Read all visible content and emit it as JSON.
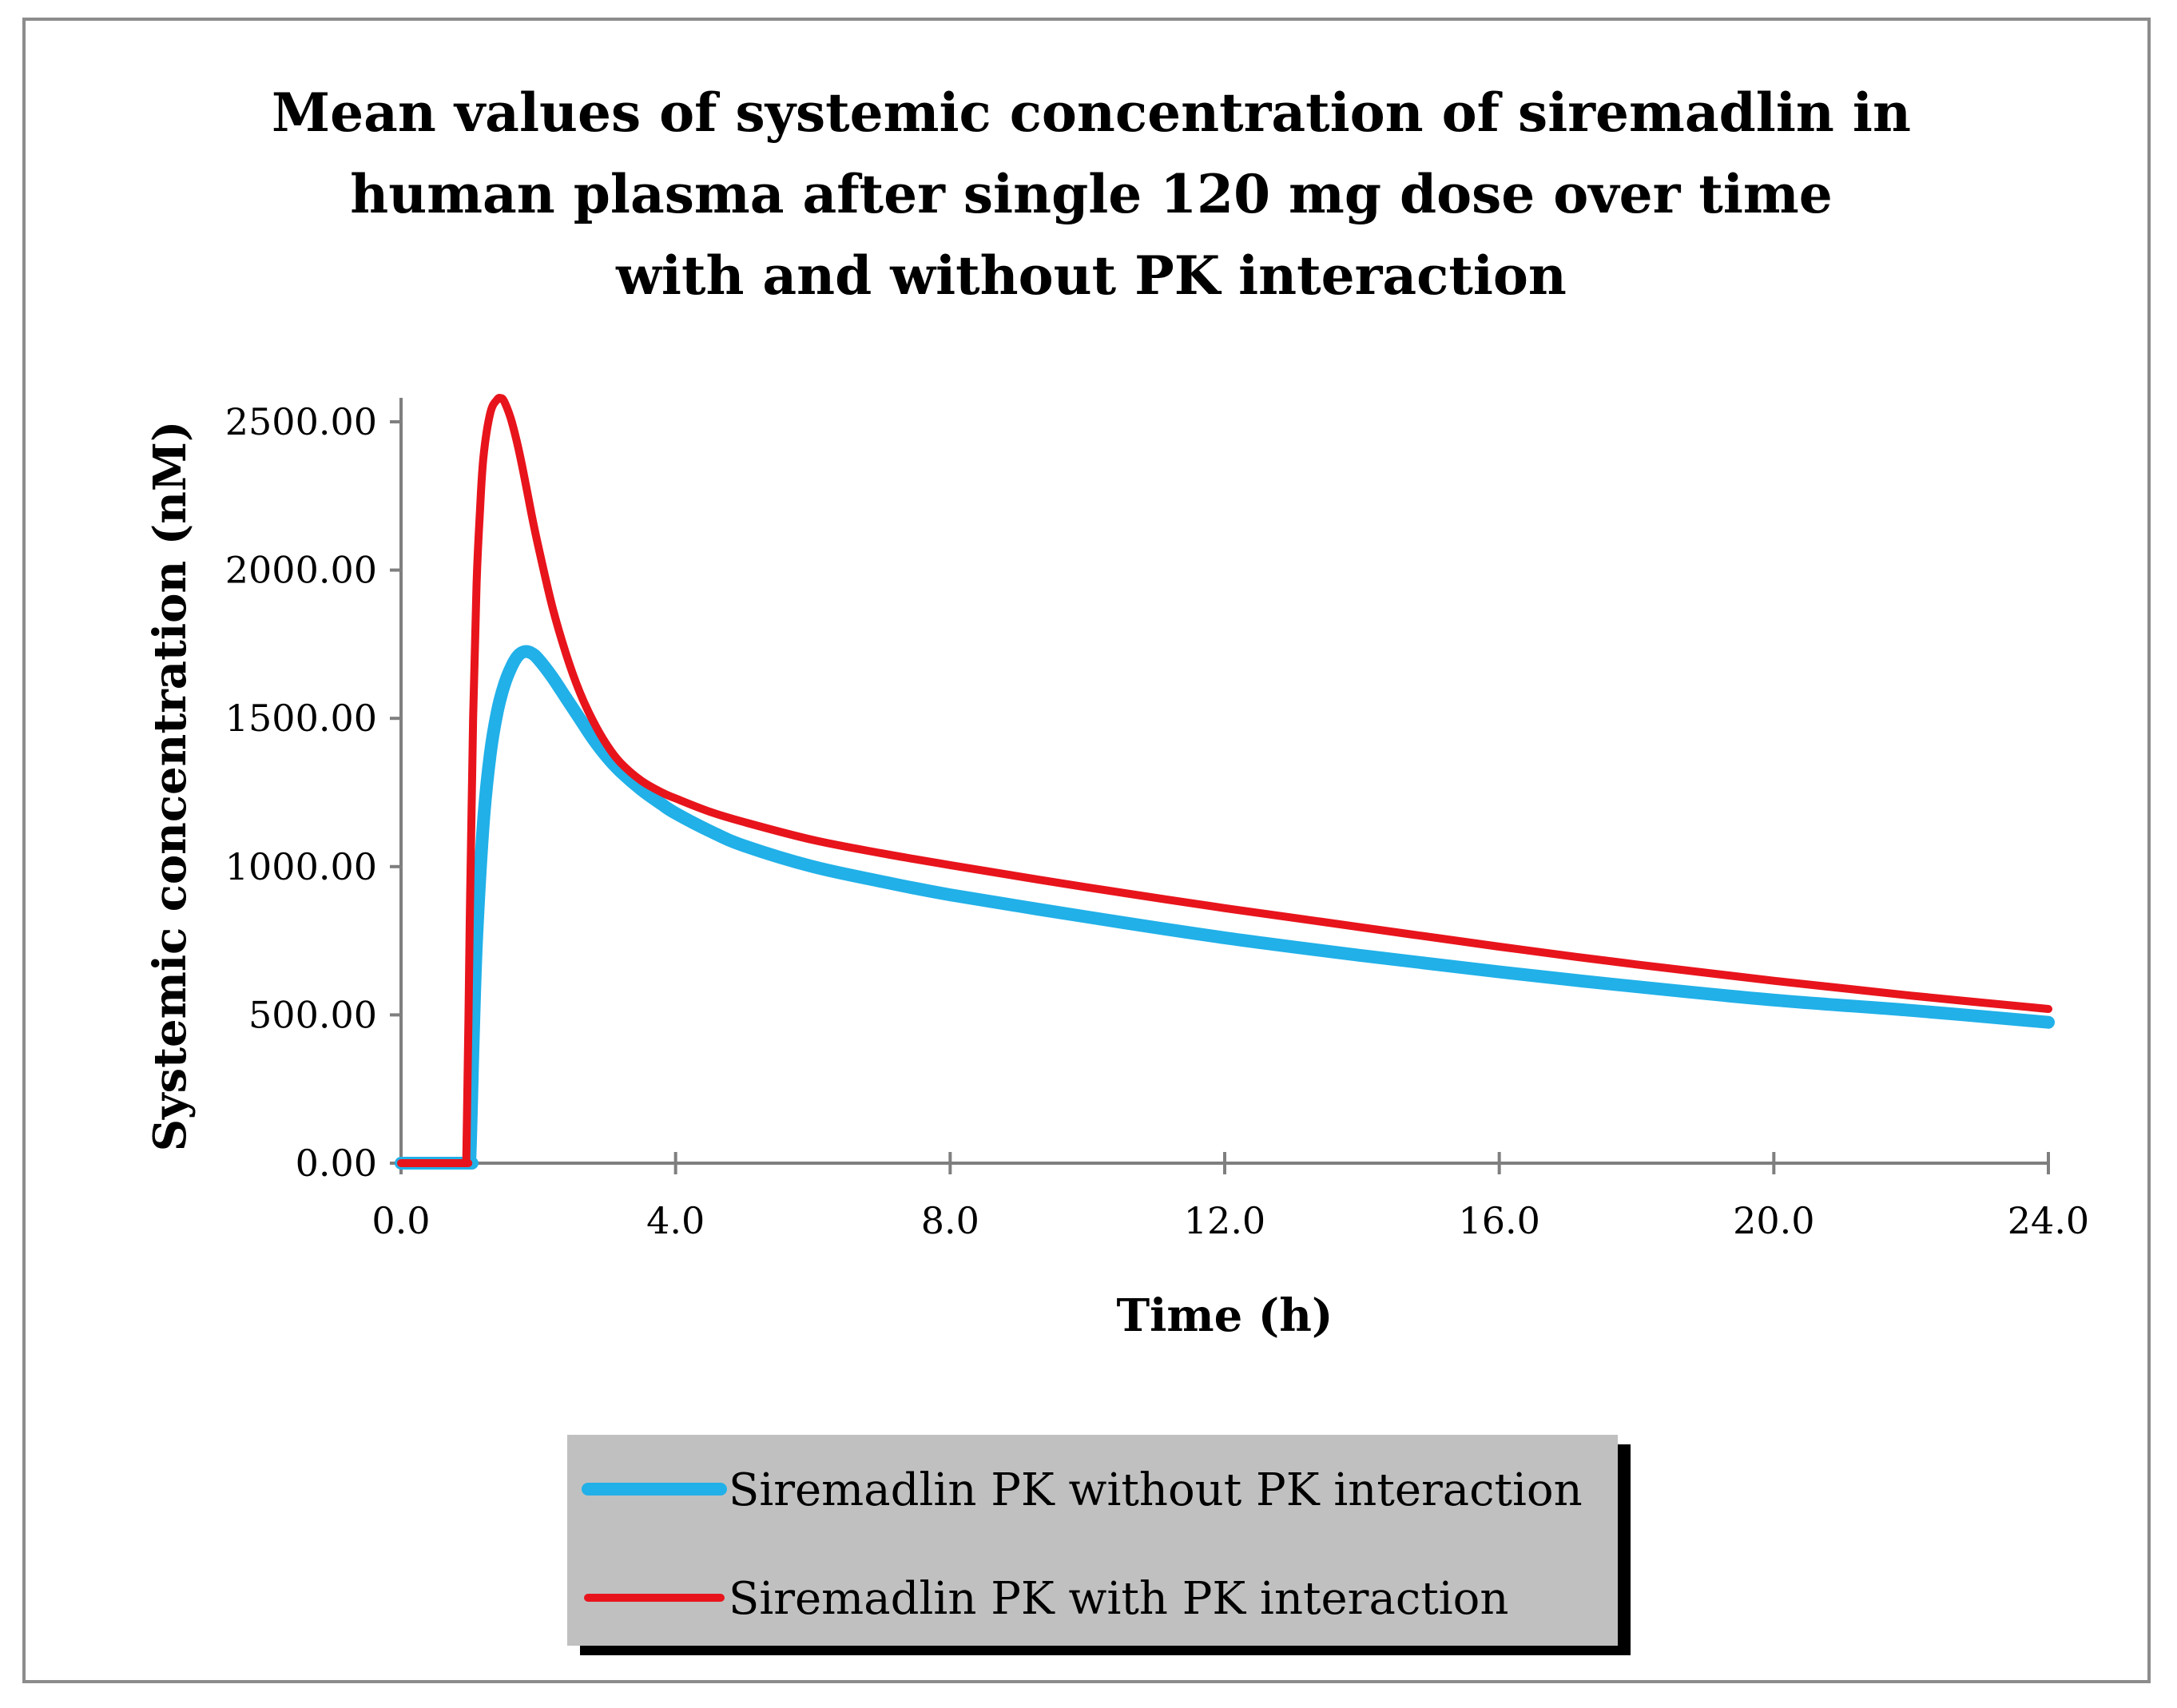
{
  "chart_data": {
    "type": "line",
    "title": [
      "Mean values of systemic concentration of siremadlin in",
      "human plasma after single 120 mg dose over time",
      "with and without PK interaction"
    ],
    "xlabel": "Time (h)",
    "ylabel": "Systemic concentration (nM)",
    "xlim": [
      0,
      24
    ],
    "ylim": [
      0,
      2500
    ],
    "xticks": [
      0,
      4,
      8,
      12,
      16,
      20,
      24
    ],
    "xtick_labels": [
      "0.0",
      "4.0",
      "8.0",
      "12.0",
      "16.0",
      "20.0",
      "24.0"
    ],
    "yticks": [
      0,
      500,
      1000,
      1500,
      2000,
      2500
    ],
    "ytick_labels": [
      "0.00",
      "500.00",
      "1000.00",
      "1500.00",
      "2000.00",
      "2500.00"
    ],
    "grid": false,
    "legend_position": "bottom",
    "series": [
      {
        "name": "Siremadlin PK without PK interaction",
        "color": "#21b0e8",
        "x": [
          0,
          0.95,
          1.0,
          1.05,
          1.1,
          1.2,
          1.3,
          1.4,
          1.5,
          1.6,
          1.7,
          1.8,
          1.9,
          2.0,
          2.2,
          2.4,
          2.6,
          2.8,
          3.0,
          3.2,
          3.5,
          3.8,
          4.0,
          4.5,
          5.0,
          6.0,
          7.0,
          8.0,
          10.0,
          12.0,
          14.0,
          16.0,
          18.0,
          20.0,
          22.0,
          24.0
        ],
        "values": [
          0,
          0,
          0,
          400,
          750,
          1150,
          1380,
          1520,
          1610,
          1670,
          1710,
          1725,
          1720,
          1700,
          1640,
          1570,
          1500,
          1430,
          1370,
          1320,
          1260,
          1210,
          1180,
          1120,
          1070,
          1000,
          950,
          905,
          830,
          760,
          700,
          645,
          595,
          550,
          515,
          475
        ]
      },
      {
        "name": "Siremadlin PK with PK interaction",
        "color": "#e8141c",
        "x": [
          0,
          0.9,
          0.95,
          1.0,
          1.05,
          1.1,
          1.15,
          1.2,
          1.3,
          1.4,
          1.45,
          1.5,
          1.6,
          1.7,
          1.8,
          1.9,
          2.0,
          2.2,
          2.4,
          2.6,
          2.8,
          3.0,
          3.2,
          3.5,
          3.8,
          4.0,
          4.5,
          5.0,
          6.0,
          7.0,
          8.0,
          10.0,
          12.0,
          14.0,
          16.0,
          18.0,
          20.0,
          22.0,
          24.0
        ],
        "values": [
          0,
          0,
          0,
          800,
          1500,
          1950,
          2200,
          2380,
          2530,
          2575,
          2580,
          2570,
          2510,
          2420,
          2310,
          2190,
          2080,
          1880,
          1720,
          1590,
          1490,
          1410,
          1350,
          1290,
          1250,
          1230,
          1185,
          1150,
          1090,
          1045,
          1005,
          930,
          860,
          795,
          730,
          670,
          615,
          565,
          520
        ]
      }
    ]
  }
}
